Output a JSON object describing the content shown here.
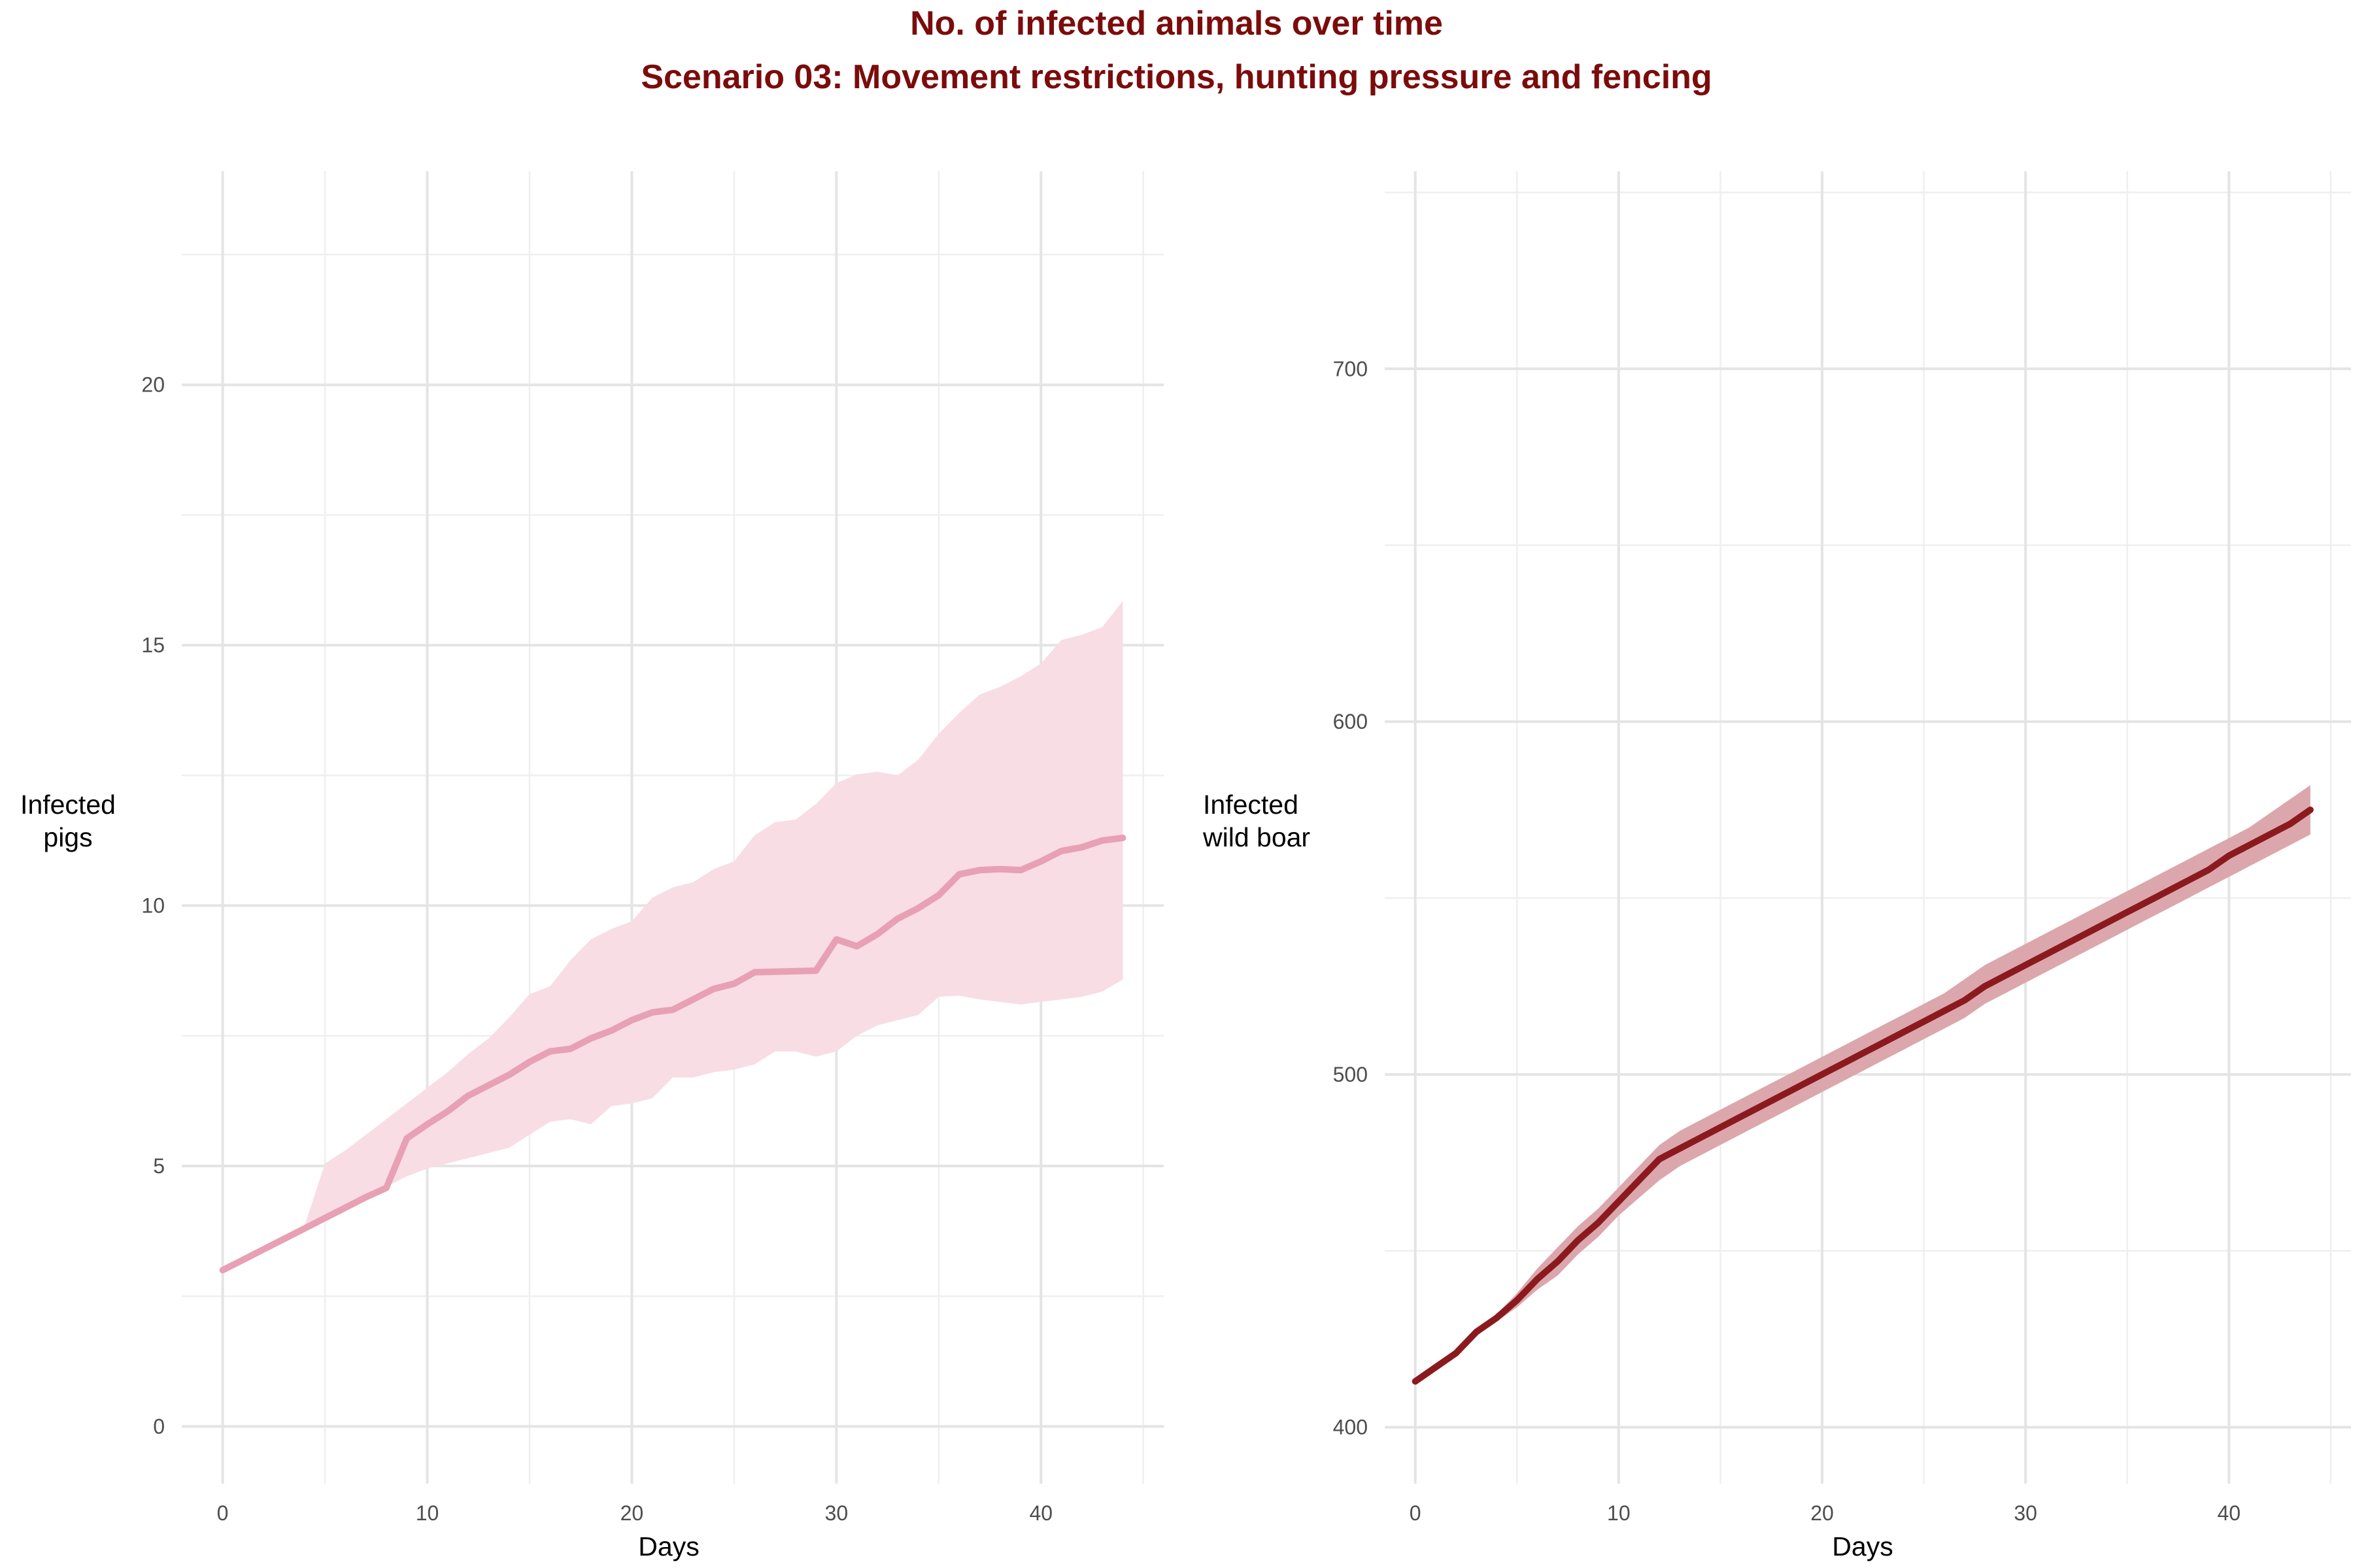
{
  "title": "No. of infected animals over time",
  "subtitle": "Scenario 03: Movement restrictions, hunting pressure and fencing",
  "colors": {
    "title": "#7b0c0c",
    "pigs_line": "#e8a0b4",
    "pigs_ribbon": "#f8dde4",
    "boar_line": "#8b1a1f",
    "boar_ribbon": "#dba7ac"
  },
  "chart_data": [
    {
      "type": "line",
      "title": "",
      "xlabel": "Days",
      "ylabel_lines": [
        "Infected",
        "pigs"
      ],
      "xlim": [
        -2,
        46
      ],
      "ylim": [
        -1.1,
        24.1
      ],
      "x_major_ticks": [
        0,
        10,
        20,
        30,
        40
      ],
      "x_minor_ticks": [
        5,
        15,
        25,
        35,
        45
      ],
      "y_major_ticks": [
        0,
        5,
        10,
        15,
        20
      ],
      "y_minor_ticks": [
        2.5,
        7.5,
        12.5,
        17.5,
        22.5
      ],
      "grid": true,
      "legend": "none",
      "series": [
        {
          "x": [
            0,
            1,
            2,
            3,
            4,
            5,
            6,
            7,
            8,
            9,
            10,
            11,
            12,
            13,
            14,
            15,
            16,
            17,
            18,
            19,
            20,
            21,
            22,
            23,
            24,
            25,
            26,
            27,
            28,
            29,
            30,
            31,
            32,
            33,
            34,
            35,
            36,
            37,
            38,
            39,
            40,
            41,
            42,
            43,
            44
          ],
          "mean": [
            3.0,
            3.2,
            3.4,
            3.6,
            3.8,
            4.0,
            4.2,
            4.4,
            4.58,
            5.53,
            5.8,
            6.05,
            6.35,
            6.55,
            6.75,
            7.0,
            7.2,
            7.25,
            7.45,
            7.6,
            7.8,
            7.95,
            8.0,
            8.2,
            8.4,
            8.5,
            8.72,
            8.73,
            8.74,
            8.75,
            9.35,
            9.22,
            9.45,
            9.75,
            9.95,
            10.2,
            10.6,
            10.68,
            10.7,
            10.68,
            10.85,
            11.05,
            11.12,
            11.25,
            11.3
          ],
          "lower": [
            3.0,
            3.2,
            3.4,
            3.6,
            3.8,
            4.0,
            4.2,
            4.4,
            4.6,
            4.8,
            4.95,
            5.05,
            5.15,
            5.25,
            5.35,
            5.6,
            5.85,
            5.9,
            5.8,
            6.15,
            6.2,
            6.3,
            6.7,
            6.7,
            6.8,
            6.85,
            6.95,
            7.2,
            7.2,
            7.1,
            7.2,
            7.5,
            7.7,
            7.8,
            7.9,
            8.25,
            8.27,
            8.2,
            8.15,
            8.1,
            8.15,
            8.2,
            8.25,
            8.35,
            8.58
          ],
          "upper": [
            3.0,
            3.2,
            3.4,
            3.6,
            3.85,
            5.05,
            5.3,
            5.6,
            5.9,
            6.2,
            6.5,
            6.8,
            7.15,
            7.45,
            7.85,
            8.3,
            8.45,
            8.95,
            9.35,
            9.55,
            9.7,
            10.15,
            10.35,
            10.45,
            10.7,
            10.85,
            11.35,
            11.6,
            11.65,
            11.95,
            12.35,
            12.52,
            12.57,
            12.5,
            12.8,
            13.3,
            13.7,
            14.05,
            14.2,
            14.4,
            14.65,
            15.1,
            15.2,
            15.35,
            15.85
          ]
        }
      ]
    },
    {
      "type": "line",
      "title": "",
      "xlabel": "Days",
      "ylabel_lines": [
        "Infected",
        "wild boar"
      ],
      "xlim": [
        -1.5,
        46
      ],
      "ylim": [
        384,
        756
      ],
      "x_major_ticks": [
        0,
        10,
        20,
        30,
        40
      ],
      "x_minor_ticks": [
        5,
        15,
        25,
        35,
        45
      ],
      "y_major_ticks": [
        400,
        500,
        600,
        700
      ],
      "y_minor_ticks": [
        450,
        550,
        650,
        750
      ],
      "grid": true,
      "legend": "none",
      "series": [
        {
          "x": [
            0,
            1,
            2,
            3,
            4,
            5,
            6,
            7,
            8,
            9,
            10,
            11,
            12,
            13,
            14,
            15,
            16,
            17,
            18,
            19,
            20,
            21,
            22,
            23,
            24,
            25,
            26,
            27,
            28,
            29,
            30,
            31,
            32,
            33,
            34,
            35,
            36,
            37,
            38,
            39,
            40,
            41,
            42,
            43,
            44
          ],
          "mean": [
            413,
            417,
            421,
            427,
            431,
            436,
            442,
            447,
            453,
            458,
            464,
            470,
            476,
            479,
            482,
            485,
            488,
            491,
            494,
            497,
            500,
            503,
            506,
            509,
            512,
            515,
            518,
            521,
            525,
            528,
            531,
            534,
            537,
            540,
            543,
            546,
            549,
            552,
            555,
            558,
            562,
            565,
            568,
            571,
            575
          ],
          "lower": [
            413,
            417,
            421,
            426,
            430,
            434,
            439,
            443,
            449,
            454,
            460,
            465,
            470,
            474,
            477,
            480,
            483,
            486,
            489,
            492,
            495,
            498,
            501,
            504,
            507,
            510,
            513,
            516,
            520,
            523,
            526,
            529,
            532,
            535,
            538,
            541,
            544,
            547,
            550,
            553,
            556,
            559,
            562,
            565,
            568
          ],
          "upper": [
            413,
            418,
            422,
            428,
            432,
            438,
            445,
            451,
            457,
            462,
            468,
            474,
            480,
            484,
            487,
            490,
            493,
            496,
            499,
            502,
            505,
            508,
            511,
            514,
            517,
            520,
            523,
            527,
            531,
            534,
            537,
            540,
            543,
            546,
            549,
            552,
            555,
            558,
            561,
            564,
            567,
            570,
            574,
            578,
            582
          ]
        }
      ]
    }
  ]
}
